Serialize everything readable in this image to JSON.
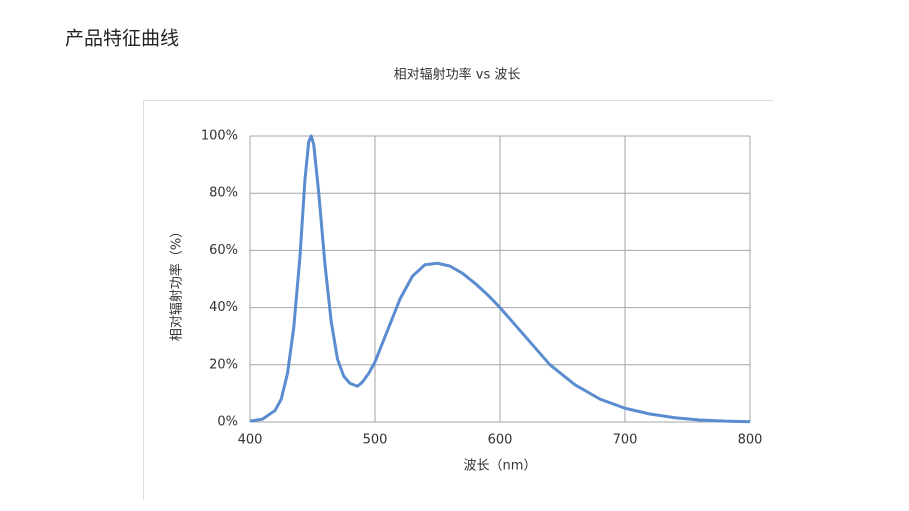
{
  "heading": "产品特征曲线",
  "chart_data": {
    "type": "line",
    "title": "相对辐射功率 vs 波长",
    "x_label": "波长（nm）",
    "y_label": "相对辐射功率（%）",
    "x": [
      400,
      410,
      420,
      425,
      430,
      435,
      440,
      444,
      447,
      449,
      451,
      455,
      460,
      465,
      470,
      475,
      480,
      486,
      490,
      495,
      500,
      510,
      520,
      530,
      540,
      550,
      560,
      570,
      580,
      590,
      600,
      620,
      640,
      660,
      680,
      700,
      720,
      740,
      760,
      780,
      800
    ],
    "values": [
      0.3,
      1,
      4,
      8,
      17,
      33,
      58,
      85,
      98,
      100,
      97,
      80,
      55,
      35,
      22,
      16,
      13.5,
      12.5,
      14,
      17,
      21,
      32,
      43,
      51,
      55,
      55.5,
      54.5,
      52,
      48.5,
      44.5,
      40,
      30,
      20,
      13,
      8,
      4.8,
      2.8,
      1.5,
      0.7,
      0.3,
      0.1
    ],
    "color": "#5b8ccf",
    "xlim": [
      400,
      800
    ],
    "xticks": [
      400,
      500,
      600,
      700,
      800
    ],
    "ylim": [
      0,
      100
    ],
    "yticks": [
      {
        "value": 0,
        "label": "0%"
      },
      {
        "value": 20,
        "label": "20%"
      },
      {
        "value": 40,
        "label": "40%"
      },
      {
        "value": 60,
        "label": "60%"
      },
      {
        "value": 80,
        "label": "80%"
      },
      {
        "value": 100,
        "label": "100%"
      }
    ],
    "grid": true
  }
}
